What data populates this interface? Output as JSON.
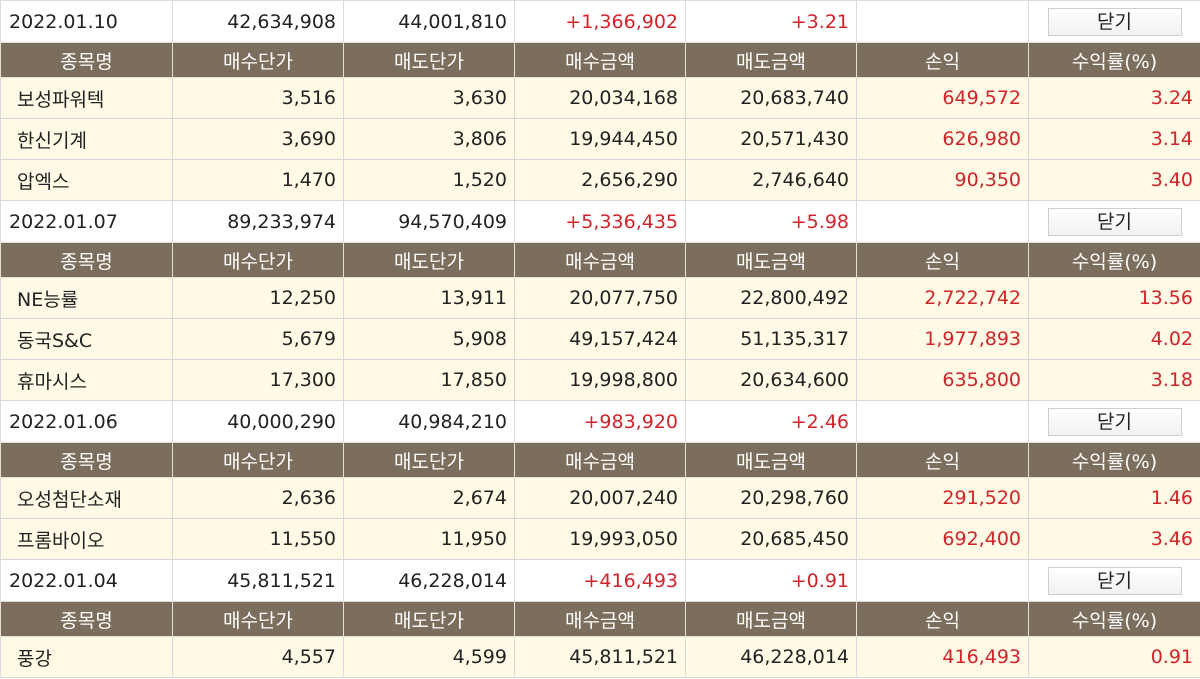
{
  "columns": [
    "종목명",
    "매수단가",
    "매도단가",
    "매수금액",
    "매도금액",
    "손익",
    "수익률(%)"
  ],
  "close_label": "닫기",
  "days": [
    {
      "date": "2022.01.10",
      "buy_total": "42,634,908",
      "sell_total": "44,001,810",
      "profit": "+1,366,902",
      "rate": "+3.21",
      "items": [
        {
          "name": "보성파워텍",
          "buy_price": "3,516",
          "sell_price": "3,630",
          "buy_amount": "20,034,168",
          "sell_amount": "20,683,740",
          "profit": "649,572",
          "rate": "3.24"
        },
        {
          "name": "한신기계",
          "buy_price": "3,690",
          "sell_price": "3,806",
          "buy_amount": "19,944,450",
          "sell_amount": "20,571,430",
          "profit": "626,980",
          "rate": "3.14"
        },
        {
          "name": "압엑스",
          "buy_price": "1,470",
          "sell_price": "1,520",
          "buy_amount": "2,656,290",
          "sell_amount": "2,746,640",
          "profit": "90,350",
          "rate": "3.40"
        }
      ]
    },
    {
      "date": "2022.01.07",
      "buy_total": "89,233,974",
      "sell_total": "94,570,409",
      "profit": "+5,336,435",
      "rate": "+5.98",
      "items": [
        {
          "name": "NE능률",
          "buy_price": "12,250",
          "sell_price": "13,911",
          "buy_amount": "20,077,750",
          "sell_amount": "22,800,492",
          "profit": "2,722,742",
          "rate": "13.56"
        },
        {
          "name": "동국S&C",
          "buy_price": "5,679",
          "sell_price": "5,908",
          "buy_amount": "49,157,424",
          "sell_amount": "51,135,317",
          "profit": "1,977,893",
          "rate": "4.02"
        },
        {
          "name": "휴마시스",
          "buy_price": "17,300",
          "sell_price": "17,850",
          "buy_amount": "19,998,800",
          "sell_amount": "20,634,600",
          "profit": "635,800",
          "rate": "3.18"
        }
      ]
    },
    {
      "date": "2022.01.06",
      "buy_total": "40,000,290",
      "sell_total": "40,984,210",
      "profit": "+983,920",
      "rate": "+2.46",
      "items": [
        {
          "name": "오성첨단소재",
          "buy_price": "2,636",
          "sell_price": "2,674",
          "buy_amount": "20,007,240",
          "sell_amount": "20,298,760",
          "profit": "291,520",
          "rate": "1.46"
        },
        {
          "name": "프롬바이오",
          "buy_price": "11,550",
          "sell_price": "11,950",
          "buy_amount": "19,993,050",
          "sell_amount": "20,685,450",
          "profit": "692,400",
          "rate": "3.46"
        }
      ]
    },
    {
      "date": "2022.01.04",
      "buy_total": "45,811,521",
      "sell_total": "46,228,014",
      "profit": "+416,493",
      "rate": "+0.91",
      "items": [
        {
          "name": "풍강",
          "buy_price": "4,557",
          "sell_price": "4,599",
          "buy_amount": "45,811,521",
          "sell_amount": "46,228,014",
          "profit": "416,493",
          "rate": "0.91"
        }
      ]
    }
  ],
  "colors": {
    "header_bg": "#7c6e5c",
    "row_bg": "#fefae6",
    "profit_red": "#d1232a"
  }
}
